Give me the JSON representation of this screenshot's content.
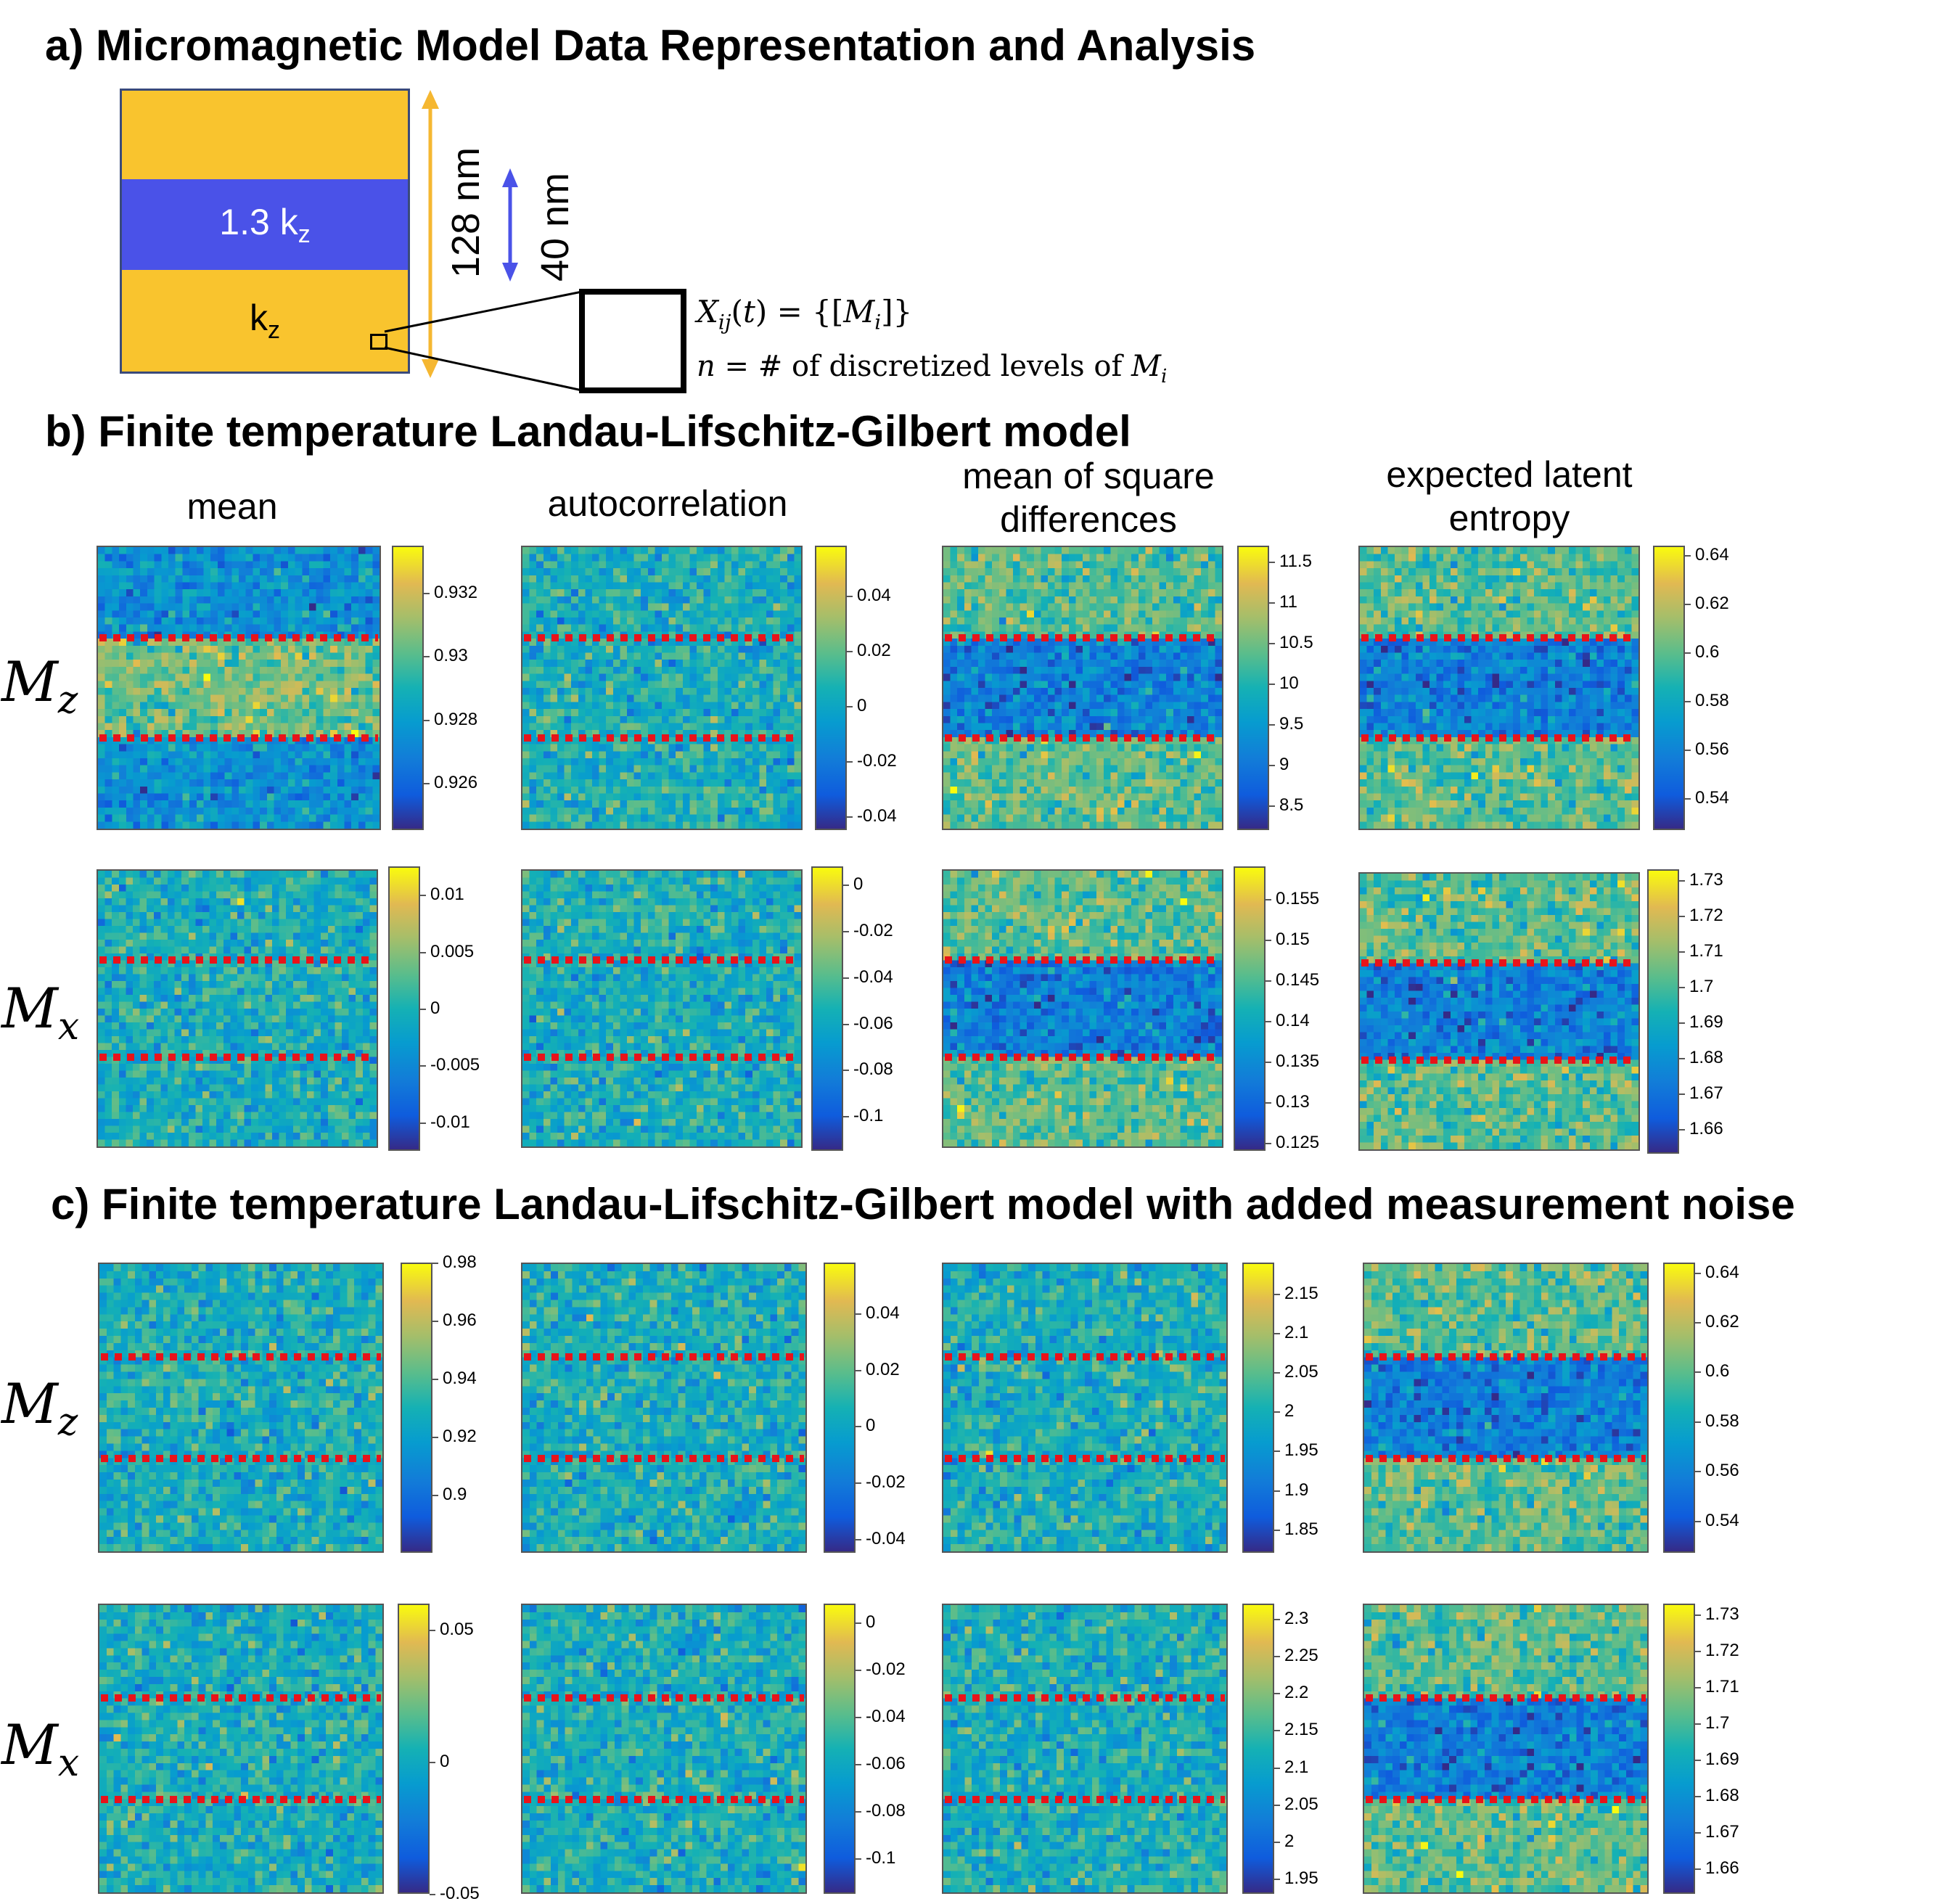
{
  "section_a": {
    "title": "a) Micromagnetic Model Data Representation and Analysis",
    "top_layer_label": "1.3 k",
    "top_layer_sub": "z",
    "bottom_layer_label": "k",
    "bottom_layer_sub": "z",
    "dim_total": "128 nm",
    "dim_layer": "40 nm",
    "equation_1": "X_ij(t) = {[M_i]}",
    "equation_2": "n = # of discretized levels of M_i",
    "colors": {
      "easy_layer": "#f9c42e",
      "hard_layer": "#4a52e8",
      "total_arrow": "#f5b731",
      "layer_arrow": "#4a52e8"
    }
  },
  "section_b": {
    "title": "b) Finite temperature Landau-Lifschitz-Gilbert model"
  },
  "section_c": {
    "title": "c) Finite temperature Landau-Lifschitz-Gilbert model with added measurement noise"
  },
  "columns": [
    {
      "line1": "mean",
      "line2": ""
    },
    {
      "line1": "autocorrelation",
      "line2": ""
    },
    {
      "line1": "mean of square",
      "line2": "differences"
    },
    {
      "line1": "expected latent",
      "line2": "entropy"
    }
  ],
  "rows": [
    {
      "symbol": "M",
      "sub": "z"
    },
    {
      "symbol": "M",
      "sub": "x"
    },
    {
      "symbol": "M",
      "sub": "z"
    },
    {
      "symbol": "M",
      "sub": "x"
    }
  ],
  "chart_data": [
    {
      "type": "heatmap",
      "panel": "b-Mz-mean",
      "colorbar_ticks": [
        "0.932",
        "0.93",
        "0.928",
        "0.926"
      ],
      "colorbar_range": [
        0.9245,
        0.9335
      ],
      "pattern": "middle band high",
      "boundaries": "two red dotted lines"
    },
    {
      "type": "heatmap",
      "panel": "b-Mz-autocorrelation",
      "colorbar_ticks": [
        "0.04",
        "0.02",
        "0",
        "-0.02",
        "-0.04"
      ],
      "colorbar_range": [
        -0.045,
        0.058
      ],
      "pattern": "uniform noise",
      "boundaries": "two red dotted lines"
    },
    {
      "type": "heatmap",
      "panel": "b-Mz-msd",
      "colorbar_ticks": [
        "11.5",
        "11",
        "10.5",
        "10",
        "9.5",
        "9",
        "8.5"
      ],
      "colorbar_range": [
        8.2,
        11.7
      ],
      "pattern": "middle band low",
      "boundaries": "two red dotted lines"
    },
    {
      "type": "heatmap",
      "panel": "b-Mz-entropy",
      "colorbar_ticks": [
        "0.64",
        "0.62",
        "0.6",
        "0.58",
        "0.56",
        "0.54"
      ],
      "colorbar_range": [
        0.527,
        0.644
      ],
      "pattern": "middle band low",
      "boundaries": "two red dotted lines"
    },
    {
      "type": "heatmap",
      "panel": "b-Mx-mean",
      "colorbar_ticks": [
        "0.01",
        "0.005",
        "0",
        "-0.005",
        "-0.01"
      ],
      "colorbar_range": [
        -0.0125,
        0.0125
      ],
      "pattern": "uniform noise",
      "boundaries": "two red dotted lines"
    },
    {
      "type": "heatmap",
      "panel": "b-Mx-autocorrelation",
      "colorbar_ticks": [
        "0",
        "-0.02",
        "-0.04",
        "-0.06",
        "-0.08",
        "-0.1"
      ],
      "colorbar_range": [
        -0.115,
        0.008
      ],
      "pattern": "uniform noise",
      "boundaries": "two red dotted lines"
    },
    {
      "type": "heatmap",
      "panel": "b-Mx-msd",
      "colorbar_ticks": [
        "0.155",
        "0.15",
        "0.145",
        "0.14",
        "0.135",
        "0.13",
        "0.125"
      ],
      "colorbar_range": [
        0.124,
        0.159
      ],
      "pattern": "middle band low",
      "boundaries": "two red dotted lines"
    },
    {
      "type": "heatmap",
      "panel": "b-Mx-entropy",
      "colorbar_ticks": [
        "1.73",
        "1.72",
        "1.71",
        "1.7",
        "1.69",
        "1.68",
        "1.67",
        "1.66"
      ],
      "colorbar_range": [
        1.653,
        1.733
      ],
      "pattern": "middle band low",
      "boundaries": "two red dotted lines"
    },
    {
      "type": "heatmap",
      "panel": "c-Mz-mean",
      "colorbar_ticks": [
        "0.98",
        "0.96",
        "0.94",
        "0.92",
        "0.9"
      ],
      "colorbar_range": [
        0.88,
        0.98
      ],
      "pattern": "uniform noise",
      "boundaries": "two red dotted lines"
    },
    {
      "type": "heatmap",
      "panel": "c-Mz-autocorrelation",
      "colorbar_ticks": [
        "0.04",
        "0.02",
        "0",
        "-0.02",
        "-0.04"
      ],
      "colorbar_range": [
        -0.045,
        0.058
      ],
      "pattern": "uniform noise",
      "boundaries": "two red dotted lines"
    },
    {
      "type": "heatmap",
      "panel": "c-Mz-msd",
      "colorbar_ticks": [
        "2.15",
        "2.1",
        "2.05",
        "2",
        "1.95",
        "1.9",
        "1.85"
      ],
      "colorbar_range": [
        1.82,
        2.19
      ],
      "pattern": "uniform noise",
      "boundaries": "two red dotted lines"
    },
    {
      "type": "heatmap",
      "panel": "c-Mz-entropy",
      "colorbar_ticks": [
        "0.64",
        "0.62",
        "0.6",
        "0.58",
        "0.56",
        "0.54"
      ],
      "colorbar_range": [
        0.527,
        0.644
      ],
      "pattern": "middle band low",
      "boundaries": "two red dotted lines"
    },
    {
      "type": "heatmap",
      "panel": "c-Mx-mean",
      "colorbar_ticks": [
        "0.05",
        "0",
        "-0.05"
      ],
      "colorbar_range": [
        -0.05,
        0.06
      ],
      "pattern": "uniform noise",
      "boundaries": "two red dotted lines"
    },
    {
      "type": "heatmap",
      "panel": "c-Mx-autocorrelation",
      "colorbar_ticks": [
        "0",
        "-0.02",
        "-0.04",
        "-0.06",
        "-0.08",
        "-0.1"
      ],
      "colorbar_range": [
        -0.115,
        0.008
      ],
      "pattern": "uniform noise",
      "boundaries": "two red dotted lines"
    },
    {
      "type": "heatmap",
      "panel": "c-Mx-msd",
      "colorbar_ticks": [
        "2.3",
        "2.25",
        "2.2",
        "2.15",
        "2.1",
        "2.05",
        "2",
        "1.95"
      ],
      "colorbar_range": [
        1.93,
        2.32
      ],
      "pattern": "uniform noise",
      "boundaries": "two red dotted lines"
    },
    {
      "type": "heatmap",
      "panel": "c-Mx-entropy",
      "colorbar_ticks": [
        "1.73",
        "1.72",
        "1.71",
        "1.7",
        "1.69",
        "1.68",
        "1.67",
        "1.66"
      ],
      "colorbar_range": [
        1.653,
        1.733
      ],
      "pattern": "middle band low",
      "boundaries": "two red dotted lines"
    }
  ]
}
